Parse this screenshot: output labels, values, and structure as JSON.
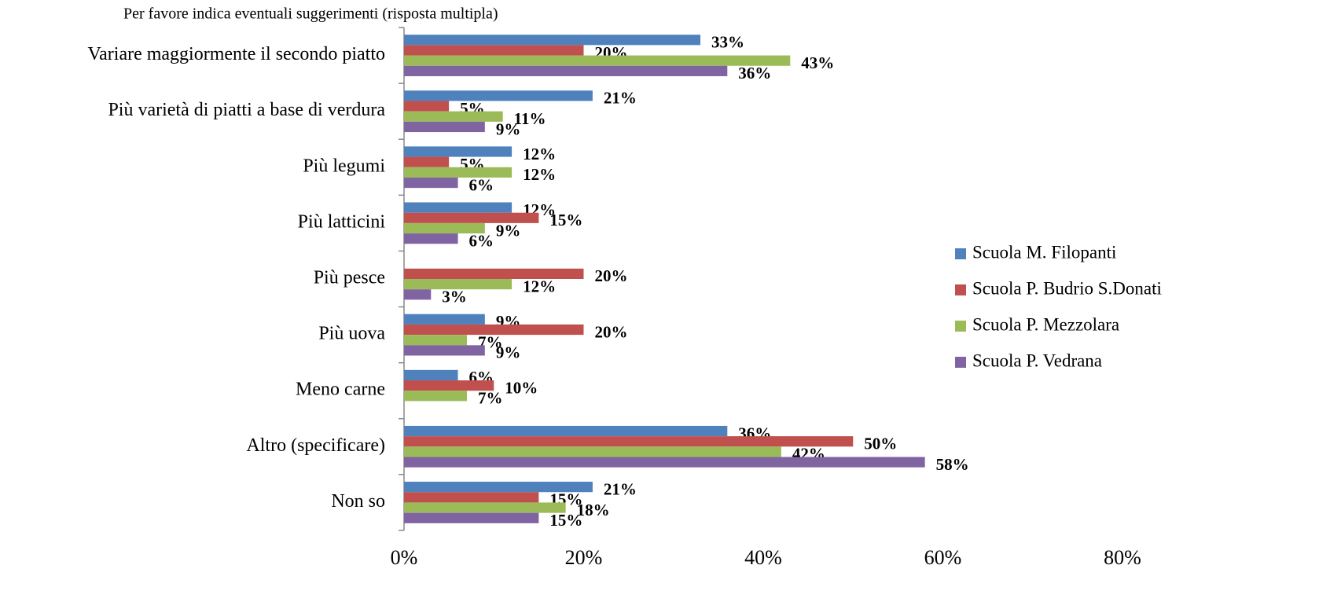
{
  "chart_data": {
    "type": "hbar",
    "title": "Per favore indica eventuali suggerimenti (risposta multipla)",
    "categories": [
      "Variare maggiormente il secondo piatto",
      "Più varietà di piatti a base di verdura",
      "Più legumi",
      "Più latticini",
      "Più pesce",
      "Più uova",
      "Meno carne",
      "Altro (specificare)",
      "Non so"
    ],
    "series": [
      {
        "name": "Scuola M. Filopanti",
        "color": "#4f81bd",
        "values": [
          33,
          21,
          12,
          12,
          null,
          9,
          6,
          36,
          21
        ],
        "value_labels": [
          "33%",
          "21%",
          "12%",
          "12%",
          null,
          "9%",
          "6%",
          "36%",
          "21%"
        ]
      },
      {
        "name": "Scuola P. Budrio S.Donati",
        "color": "#c0504d",
        "values": [
          20,
          5,
          5,
          15,
          20,
          20,
          10,
          50,
          15
        ],
        "value_labels": [
          "20%",
          "5%",
          "5%",
          "15%",
          "20%",
          "20%",
          "10%",
          "50%",
          "15%"
        ]
      },
      {
        "name": "Scuola P. Mezzolara",
        "color": "#9bbb59",
        "values": [
          43,
          11,
          12,
          9,
          12,
          7,
          7,
          42,
          18
        ],
        "value_labels": [
          "43%",
          "11%",
          "12%",
          "9%",
          "12%",
          "7%",
          "7%",
          "42%",
          "18%"
        ]
      },
      {
        "name": "Scuola P. Vedrana",
        "color": "#8064a2",
        "values": [
          36,
          9,
          6,
          6,
          3,
          9,
          null,
          58,
          15
        ],
        "value_labels": [
          "36%",
          "9%",
          "6%",
          "6%",
          "3%",
          "9%",
          null,
          "58%",
          "15%"
        ]
      }
    ],
    "xlim": [
      0,
      80
    ],
    "xticks": [
      {
        "value": 0,
        "label": "0%"
      },
      {
        "value": 20,
        "label": "20%"
      },
      {
        "value": 40,
        "label": "40%"
      },
      {
        "value": 60,
        "label": "60%"
      },
      {
        "value": 80,
        "label": "80%"
      }
    ],
    "grid": false,
    "legend": "right"
  }
}
